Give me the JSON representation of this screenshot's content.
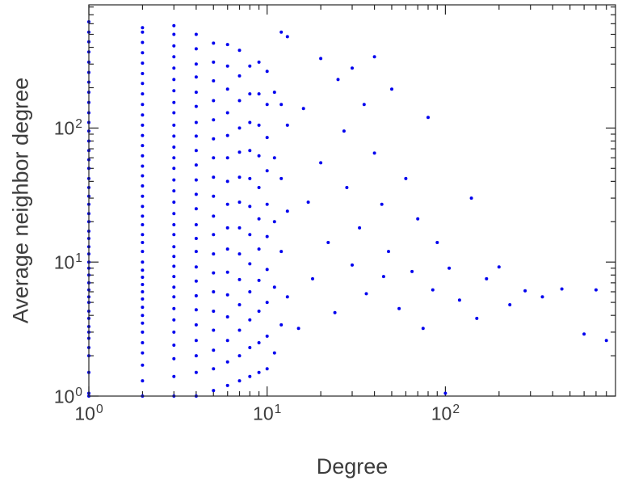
{
  "figure": {
    "background": "#ffffff"
  },
  "chart_data": {
    "type": "scatter",
    "title": "",
    "xlabel": "Degree",
    "ylabel": "Average neighbor degree",
    "x_scale": "log",
    "y_scale": "log",
    "xlim": [
      1,
      900
    ],
    "ylim": [
      1,
      830
    ],
    "grid": false,
    "legend": null,
    "axis_color": "#262626",
    "text_color": "#3c3c3c",
    "marker": {
      "color": "#0000ee",
      "size": 2,
      "shape": "dot"
    },
    "x_ticks": [
      {
        "value": 1,
        "label": "10^0"
      },
      {
        "value": 10,
        "label": "10^1"
      },
      {
        "value": 100,
        "label": "10^2"
      }
    ],
    "y_ticks": [
      {
        "value": 1,
        "label": "10^0"
      },
      {
        "value": 10,
        "label": "10^1"
      },
      {
        "value": 100,
        "label": "10^2"
      }
    ],
    "points": [
      [
        1,
        1.0
      ],
      [
        1,
        1.05
      ],
      [
        1,
        1.5
      ],
      [
        1,
        2.0
      ],
      [
        1,
        2.3
      ],
      [
        1,
        2.7
      ],
      [
        1,
        3.0
      ],
      [
        1,
        3.3
      ],
      [
        1,
        3.8
      ],
      [
        1,
        4.3
      ],
      [
        1,
        5.0
      ],
      [
        1,
        5.5
      ],
      [
        1,
        6.2
      ],
      [
        1,
        7.0
      ],
      [
        1,
        8.0
      ],
      [
        1,
        9.0
      ],
      [
        1,
        10.0
      ],
      [
        1,
        11.5
      ],
      [
        1,
        13
      ],
      [
        1,
        15
      ],
      [
        1,
        17
      ],
      [
        1,
        20
      ],
      [
        1,
        23
      ],
      [
        1,
        27
      ],
      [
        1,
        31
      ],
      [
        1,
        36
      ],
      [
        1,
        42
      ],
      [
        1,
        50
      ],
      [
        1,
        58
      ],
      [
        1,
        68
      ],
      [
        1,
        80
      ],
      [
        1,
        95
      ],
      [
        1,
        110
      ],
      [
        1,
        130
      ],
      [
        1,
        155
      ],
      [
        1,
        185
      ],
      [
        1,
        220
      ],
      [
        1,
        260
      ],
      [
        1,
        310
      ],
      [
        1,
        370
      ],
      [
        1,
        440
      ],
      [
        1,
        520
      ],
      [
        1,
        620
      ],
      [
        2,
        1.0
      ],
      [
        2,
        1.3
      ],
      [
        2,
        1.7
      ],
      [
        2,
        2.1
      ],
      [
        2,
        2.5
      ],
      [
        2,
        3.0
      ],
      [
        2,
        3.5
      ],
      [
        2,
        4.0
      ],
      [
        2,
        4.6
      ],
      [
        2,
        5.3
      ],
      [
        2,
        6.0
      ],
      [
        2,
        6.8
      ],
      [
        2,
        7.7
      ],
      [
        2,
        8.7
      ],
      [
        2,
        10
      ],
      [
        2,
        12
      ],
      [
        2,
        14
      ],
      [
        2,
        16
      ],
      [
        2,
        19
      ],
      [
        2,
        22
      ],
      [
        2,
        26
      ],
      [
        2,
        31
      ],
      [
        2,
        37
      ],
      [
        2,
        44
      ],
      [
        2,
        52
      ],
      [
        2,
        62
      ],
      [
        2,
        74
      ],
      [
        2,
        88
      ],
      [
        2,
        105
      ],
      [
        2,
        125
      ],
      [
        2,
        150
      ],
      [
        2,
        180
      ],
      [
        2,
        215
      ],
      [
        2,
        255
      ],
      [
        2,
        305
      ],
      [
        2,
        365
      ],
      [
        2,
        435
      ],
      [
        2,
        520
      ],
      [
        2,
        560
      ],
      [
        3,
        1.0
      ],
      [
        3,
        1.4
      ],
      [
        3,
        1.9
      ],
      [
        3,
        2.4
      ],
      [
        3,
        3.0
      ],
      [
        3,
        3.7
      ],
      [
        3,
        4.5
      ],
      [
        3,
        5.5
      ],
      [
        3,
        6.5
      ],
      [
        3,
        7.8
      ],
      [
        3,
        9.3
      ],
      [
        3,
        11
      ],
      [
        3,
        13
      ],
      [
        3,
        16
      ],
      [
        3,
        19
      ],
      [
        3,
        23
      ],
      [
        3,
        28
      ],
      [
        3,
        34
      ],
      [
        3,
        41
      ],
      [
        3,
        50
      ],
      [
        3,
        60
      ],
      [
        3,
        72
      ],
      [
        3,
        87
      ],
      [
        3,
        105
      ],
      [
        3,
        130
      ],
      [
        3,
        155
      ],
      [
        3,
        190
      ],
      [
        3,
        230
      ],
      [
        3,
        280
      ],
      [
        3,
        340
      ],
      [
        3,
        410
      ],
      [
        3,
        500
      ],
      [
        3,
        580
      ],
      [
        4,
        1.0
      ],
      [
        4,
        1.5
      ],
      [
        4,
        2.0
      ],
      [
        4,
        2.6
      ],
      [
        4,
        3.4
      ],
      [
        4,
        4.4
      ],
      [
        4,
        5.6
      ],
      [
        4,
        7.2
      ],
      [
        4,
        9.2
      ],
      [
        4,
        12
      ],
      [
        4,
        15
      ],
      [
        4,
        19
      ],
      [
        4,
        25
      ],
      [
        4,
        32
      ],
      [
        4,
        41
      ],
      [
        4,
        53
      ],
      [
        4,
        68
      ],
      [
        4,
        87
      ],
      [
        4,
        110
      ],
      [
        4,
        145
      ],
      [
        4,
        185
      ],
      [
        4,
        240
      ],
      [
        4,
        300
      ],
      [
        4,
        390
      ],
      [
        4,
        500
      ],
      [
        5,
        1.1
      ],
      [
        5,
        1.6
      ],
      [
        5,
        2.2
      ],
      [
        5,
        3.1
      ],
      [
        5,
        4.3
      ],
      [
        5,
        6.0
      ],
      [
        5,
        8.3
      ],
      [
        5,
        11.5
      ],
      [
        5,
        16
      ],
      [
        5,
        22
      ],
      [
        5,
        31
      ],
      [
        5,
        43
      ],
      [
        5,
        60
      ],
      [
        5,
        83
      ],
      [
        5,
        115
      ],
      [
        5,
        160
      ],
      [
        5,
        225
      ],
      [
        5,
        310
      ],
      [
        5,
        430
      ],
      [
        6,
        1.2
      ],
      [
        6,
        1.8
      ],
      [
        6,
        2.6
      ],
      [
        6,
        3.9
      ],
      [
        6,
        5.7
      ],
      [
        6,
        8.4
      ],
      [
        6,
        12.5
      ],
      [
        6,
        18
      ],
      [
        6,
        27
      ],
      [
        6,
        40
      ],
      [
        6,
        60
      ],
      [
        6,
        88
      ],
      [
        6,
        130
      ],
      [
        6,
        195
      ],
      [
        6,
        290
      ],
      [
        6,
        420
      ],
      [
        7,
        1.3
      ],
      [
        7,
        2.0
      ],
      [
        7,
        3.1
      ],
      [
        7,
        4.8
      ],
      [
        7,
        7.4
      ],
      [
        7,
        11.5
      ],
      [
        7,
        18
      ],
      [
        7,
        28
      ],
      [
        7,
        43
      ],
      [
        7,
        66
      ],
      [
        7,
        100
      ],
      [
        7,
        160
      ],
      [
        7,
        245
      ],
      [
        7,
        380
      ],
      [
        8,
        1.4
      ],
      [
        8,
        2.3
      ],
      [
        8,
        3.7
      ],
      [
        8,
        6.0
      ],
      [
        8,
        9.7
      ],
      [
        8,
        16
      ],
      [
        8,
        26
      ],
      [
        8,
        42
      ],
      [
        8,
        68
      ],
      [
        8,
        110
      ],
      [
        8,
        180
      ],
      [
        8,
        290
      ],
      [
        9,
        1.5
      ],
      [
        9,
        2.5
      ],
      [
        9,
        4.3
      ],
      [
        9,
        7.3
      ],
      [
        9,
        12.5
      ],
      [
        9,
        21
      ],
      [
        9,
        36
      ],
      [
        9,
        62
      ],
      [
        9,
        105
      ],
      [
        9,
        180
      ],
      [
        9,
        310
      ],
      [
        10,
        1.6
      ],
      [
        10,
        2.8
      ],
      [
        10,
        5.0
      ],
      [
        10,
        8.8
      ],
      [
        10,
        15.5
      ],
      [
        10,
        27
      ],
      [
        10,
        48
      ],
      [
        10,
        85
      ],
      [
        10,
        150
      ],
      [
        10,
        265
      ],
      [
        11,
        2.1
      ],
      [
        11,
        6.5
      ],
      [
        11,
        20
      ],
      [
        11,
        60
      ],
      [
        11,
        185
      ],
      [
        12,
        3.4
      ],
      [
        12,
        12
      ],
      [
        12,
        42
      ],
      [
        12,
        150
      ],
      [
        12,
        520
      ],
      [
        13,
        5.5
      ],
      [
        13,
        24
      ],
      [
        13,
        105
      ],
      [
        13,
        480
      ],
      [
        15,
        3.2
      ],
      [
        16,
        140
      ],
      [
        17,
        28
      ],
      [
        18,
        7.5
      ],
      [
        20,
        330
      ],
      [
        20,
        55
      ],
      [
        22,
        14
      ],
      [
        24,
        4.2
      ],
      [
        25,
        230
      ],
      [
        27,
        95
      ],
      [
        28,
        36
      ],
      [
        30,
        280
      ],
      [
        30,
        9.5
      ],
      [
        33,
        18
      ],
      [
        35,
        150
      ],
      [
        36,
        5.8
      ],
      [
        40,
        340
      ],
      [
        40,
        65
      ],
      [
        44,
        27
      ],
      [
        45,
        7.8
      ],
      [
        48,
        12
      ],
      [
        50,
        195
      ],
      [
        55,
        4.5
      ],
      [
        60,
        42
      ],
      [
        65,
        8.5
      ],
      [
        70,
        21
      ],
      [
        75,
        3.2
      ],
      [
        80,
        120
      ],
      [
        85,
        6.2
      ],
      [
        90,
        14
      ],
      [
        100,
        1.05
      ],
      [
        105,
        9
      ],
      [
        120,
        5.2
      ],
      [
        140,
        30
      ],
      [
        150,
        3.8
      ],
      [
        170,
        7.5
      ],
      [
        200,
        9.2
      ],
      [
        230,
        4.8
      ],
      [
        280,
        6.1
      ],
      [
        350,
        5.5
      ],
      [
        450,
        6.3
      ],
      [
        600,
        2.9
      ],
      [
        700,
        6.2
      ],
      [
        800,
        2.6
      ]
    ]
  }
}
